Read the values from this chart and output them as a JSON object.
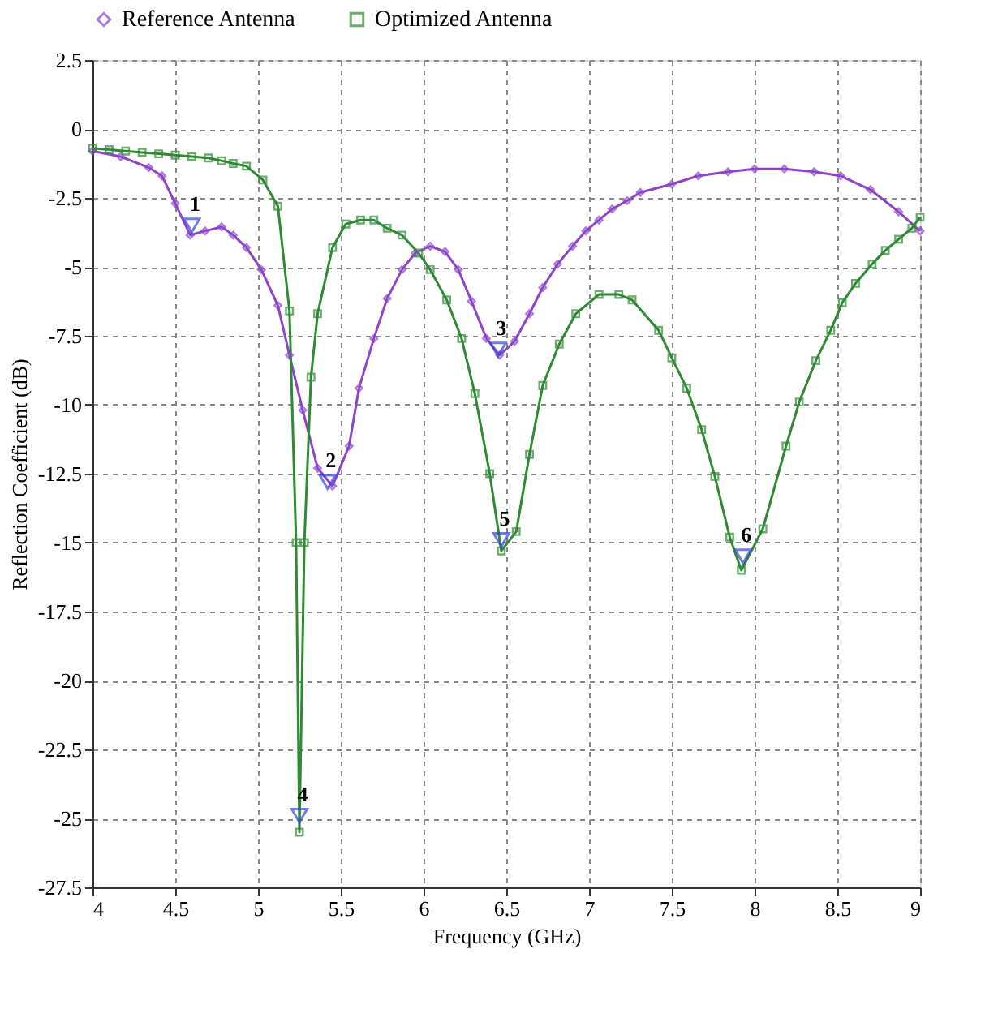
{
  "chart_data": {
    "type": "line",
    "xlabel": "Frequency (GHz)",
    "ylabel": "Reflection Coefficient (dB)",
    "xlim": [
      4,
      9
    ],
    "ylim": [
      -27.5,
      2.5
    ],
    "xticks": [
      4,
      4.5,
      5,
      5.5,
      6,
      6.5,
      7,
      7.5,
      8,
      8.5,
      9
    ],
    "yticks": [
      2.5,
      0,
      -2.5,
      -5,
      -7.5,
      -10,
      -12.5,
      -15,
      -17.5,
      -20,
      -22.5,
      -25,
      -27.5
    ],
    "grid": true,
    "legend": "top",
    "line_style": "solid",
    "series": [
      {
        "name": "Reference Antenna",
        "color": "#8e44c8",
        "marker": "diamond",
        "x": [
          4.0,
          4.17,
          4.34,
          4.42,
          4.5,
          4.59,
          4.68,
          4.78,
          4.85,
          4.93,
          5.02,
          5.12,
          5.19,
          5.27,
          5.36,
          5.45,
          5.55,
          5.61,
          5.7,
          5.78,
          5.87,
          5.95,
          6.04,
          6.13,
          6.21,
          6.29,
          6.38,
          6.46,
          6.55,
          6.64,
          6.72,
          6.81,
          6.9,
          6.98,
          7.06,
          7.14,
          7.23,
          7.31,
          7.5,
          7.66,
          7.84,
          8.0,
          8.18,
          8.36,
          8.52,
          8.7,
          8.87,
          9.0
        ],
        "values": [
          -0.8,
          -1.0,
          -1.4,
          -1.7,
          -2.7,
          -3.85,
          -3.7,
          -3.55,
          -3.85,
          -4.3,
          -5.1,
          -6.4,
          -8.2,
          -10.2,
          -12.3,
          -12.95,
          -11.5,
          -9.4,
          -7.6,
          -6.15,
          -5.1,
          -4.5,
          -4.25,
          -4.45,
          -5.1,
          -6.25,
          -7.6,
          -8.2,
          -7.7,
          -6.7,
          -5.75,
          -4.9,
          -4.25,
          -3.7,
          -3.3,
          -2.9,
          -2.6,
          -2.3,
          -2.0,
          -1.7,
          -1.55,
          -1.45,
          -1.45,
          -1.55,
          -1.7,
          -2.2,
          -3.0,
          -3.7
        ]
      },
      {
        "name": "Optimized Antenna",
        "color": "#2f8a34",
        "marker": "square",
        "x": [
          4.0,
          4.1,
          4.2,
          4.3,
          4.4,
          4.5,
          4.6,
          4.7,
          4.78,
          4.85,
          4.93,
          5.03,
          5.12,
          5.19,
          5.23,
          5.25,
          5.28,
          5.32,
          5.36,
          5.45,
          5.53,
          5.62,
          5.7,
          5.78,
          5.87,
          5.97,
          6.04,
          6.14,
          6.23,
          6.31,
          6.4,
          6.47,
          6.56,
          6.64,
          6.72,
          6.82,
          6.92,
          7.06,
          7.18,
          7.26,
          7.42,
          7.5,
          7.59,
          7.68,
          7.76,
          7.85,
          7.92,
          8.05,
          8.19,
          8.27,
          8.37,
          8.46,
          8.53,
          8.61,
          8.71,
          8.79,
          8.87,
          8.95,
          9.0
        ],
        "values": [
          -0.7,
          -0.75,
          -0.8,
          -0.85,
          -0.9,
          -0.95,
          -1.0,
          -1.05,
          -1.15,
          -1.25,
          -1.35,
          -1.85,
          -2.8,
          -6.6,
          -15.0,
          -25.5,
          -15.0,
          -9.0,
          -6.7,
          -4.3,
          -3.45,
          -3.3,
          -3.3,
          -3.6,
          -3.85,
          -4.5,
          -5.1,
          -6.2,
          -7.6,
          -9.6,
          -12.5,
          -15.3,
          -14.6,
          -11.8,
          -9.3,
          -7.8,
          -6.7,
          -6.0,
          -6.0,
          -6.2,
          -7.3,
          -8.3,
          -9.4,
          -10.9,
          -12.6,
          -14.8,
          -16.0,
          -14.5,
          -11.5,
          -9.9,
          -8.4,
          -7.3,
          -6.3,
          -5.6,
          -4.9,
          -4.4,
          -4.0,
          -3.6,
          -3.2
        ]
      }
    ],
    "annotations": [
      {
        "text": "1",
        "x": 4.6,
        "y": -3.5
      },
      {
        "text": "2",
        "x": 5.42,
        "y": -12.8
      },
      {
        "text": "3",
        "x": 6.45,
        "y": -8.0
      },
      {
        "text": "4",
        "x": 5.25,
        "y": -24.9
      },
      {
        "text": "5",
        "x": 6.47,
        "y": -14.9
      },
      {
        "text": "6",
        "x": 7.93,
        "y": -15.5
      }
    ]
  }
}
